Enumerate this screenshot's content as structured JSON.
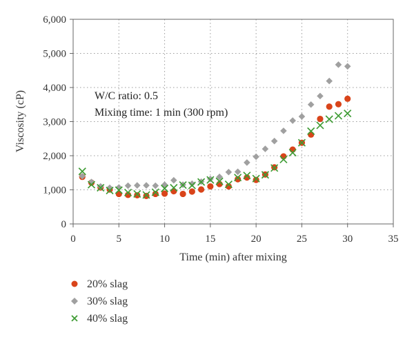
{
  "colors": {
    "series_20": "#d9441a",
    "series_30": "#a0a0a0",
    "series_40": "#3f9c35",
    "axis": "#666666",
    "grid": "#9a9a9a"
  },
  "chart_data": {
    "type": "scatter",
    "xlabel": "Time (min) after mixing",
    "ylabel": "Viscosity (cP)",
    "xlim": [
      0,
      35
    ],
    "ylim": [
      0,
      6000
    ],
    "xticks": [
      0,
      5,
      10,
      15,
      20,
      25,
      30,
      35
    ],
    "yticks": [
      0,
      1000,
      2000,
      3000,
      4000,
      5000,
      6000
    ],
    "xtick_labels": [
      "0",
      "5",
      "10",
      "15",
      "20",
      "25",
      "30",
      "35"
    ],
    "ytick_labels": [
      "0",
      "1,000",
      "2,000",
      "3,000",
      "4,000",
      "5,000",
      "6,000"
    ],
    "grid": true,
    "legend_position": "bottom-left, below plot",
    "annotations": [
      "W/C ratio: 0.5",
      "Mixing time: 1 min (300 rpm)"
    ],
    "x": [
      1,
      2,
      3,
      4,
      5,
      6,
      7,
      8,
      9,
      10,
      11,
      12,
      13,
      14,
      15,
      16,
      17,
      18,
      19,
      20,
      21,
      22,
      23,
      24,
      25,
      26,
      27,
      28,
      29,
      30
    ],
    "series": [
      {
        "name": "20% slag",
        "marker": "circle",
        "values": [
          1380,
          1210,
          1070,
          1010,
          880,
          850,
          840,
          820,
          880,
          890,
          960,
          880,
          950,
          1010,
          1100,
          1170,
          1100,
          1310,
          1360,
          1290,
          1450,
          1660,
          1980,
          2180,
          2380,
          2620,
          3080,
          3440,
          3510,
          3670
        ]
      },
      {
        "name": "30% slag",
        "marker": "diamond",
        "values": [
          1400,
          1230,
          1100,
          1060,
          1070,
          1120,
          1130,
          1130,
          1120,
          1150,
          1280,
          1150,
          1180,
          1240,
          1320,
          1380,
          1520,
          1530,
          1800,
          1970,
          2200,
          2430,
          2730,
          3030,
          3150,
          3500,
          3750,
          4190,
          4670,
          4620
        ]
      },
      {
        "name": "40% slag",
        "marker": "cross",
        "values": [
          1540,
          1150,
          1060,
          980,
          990,
          920,
          880,
          850,
          930,
          1040,
          1060,
          1140,
          1130,
          1230,
          1290,
          1250,
          1160,
          1360,
          1420,
          1330,
          1440,
          1640,
          1890,
          2090,
          2380,
          2720,
          2890,
          3070,
          3170,
          3240
        ]
      }
    ]
  }
}
